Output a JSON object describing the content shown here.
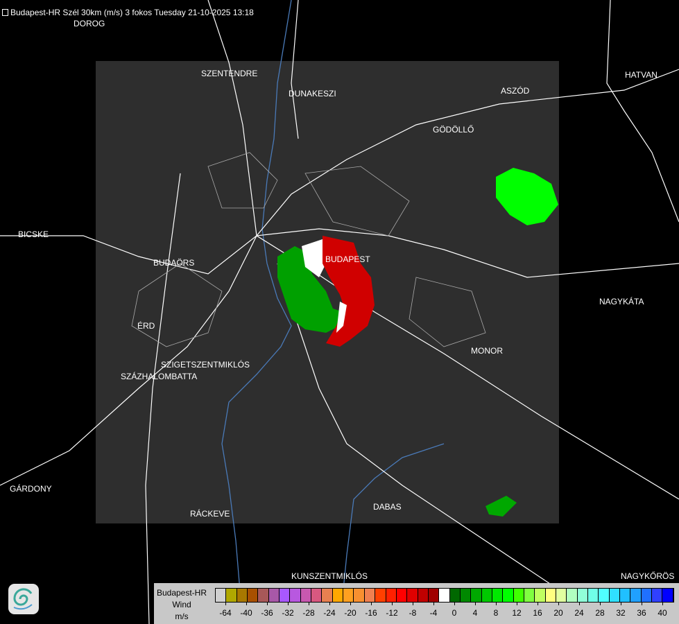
{
  "title": "Budapest-HR Szél 30km (m/s) 3 fokos Tuesday 21-10-2025 13:18",
  "cities": [
    {
      "name": "DOROG"
    },
    {
      "name": "SZENTENDRE"
    },
    {
      "name": "DUNAKESZI"
    },
    {
      "name": "HATVAN"
    },
    {
      "name": "ASZÓD"
    },
    {
      "name": "GÖDÖLLŐ"
    },
    {
      "name": "BICSKE"
    },
    {
      "name": "BUDAÖRS"
    },
    {
      "name": "BUDAPEST"
    },
    {
      "name": "NAGYKÁTA"
    },
    {
      "name": "ÉRD"
    },
    {
      "name": "MONOR"
    },
    {
      "name": "SZIGETSZENTMIKLÓS"
    },
    {
      "name": "SZÁZHALOMBATTA"
    },
    {
      "name": "GÁRDONY"
    },
    {
      "name": "RÁCKEVE"
    },
    {
      "name": "DABAS"
    },
    {
      "name": "KUNSZENTMIKLÓS"
    },
    {
      "name": "NAGYKŐRÖS"
    }
  ],
  "legend": {
    "radar": "Budapest-HR",
    "product": "Wind",
    "unit": "m/s",
    "colors": [
      "#d0d0d0",
      "#b0a800",
      "#a87800",
      "#a85000",
      "#a85858",
      "#a858a8",
      "#a858ff",
      "#b858e0",
      "#c858b0",
      "#d85880",
      "#e88050",
      "#ffa800",
      "#ffa020",
      "#f89030",
      "#f08050",
      "#ff4000",
      "#ff2000",
      "#ff0000",
      "#e00000",
      "#c00000",
      "#a00000",
      "#ffffff",
      "#006800",
      "#008800",
      "#00a800",
      "#00c800",
      "#00e800",
      "#00ff00",
      "#40ff00",
      "#80ff40",
      "#c0ff60",
      "#ffff80",
      "#e0ffa0",
      "#b0ffc0",
      "#90ffd8",
      "#70ffe8",
      "#50ffff",
      "#30e0ff",
      "#20c0ff",
      "#20a0ff",
      "#2070ff",
      "#3040ff",
      "#0000ff"
    ],
    "ticks": [
      "-64",
      "-40",
      "-36",
      "-32",
      "-28",
      "-24",
      "-20",
      "-16",
      "-12",
      "-8",
      "-4",
      "0",
      "4",
      "8",
      "12",
      "16",
      "20",
      "24",
      "28",
      "32",
      "36",
      "40"
    ]
  },
  "colors": {
    "coverage": "#2e2e2e",
    "approaching": "#00b000",
    "receding": "#d00000"
  }
}
